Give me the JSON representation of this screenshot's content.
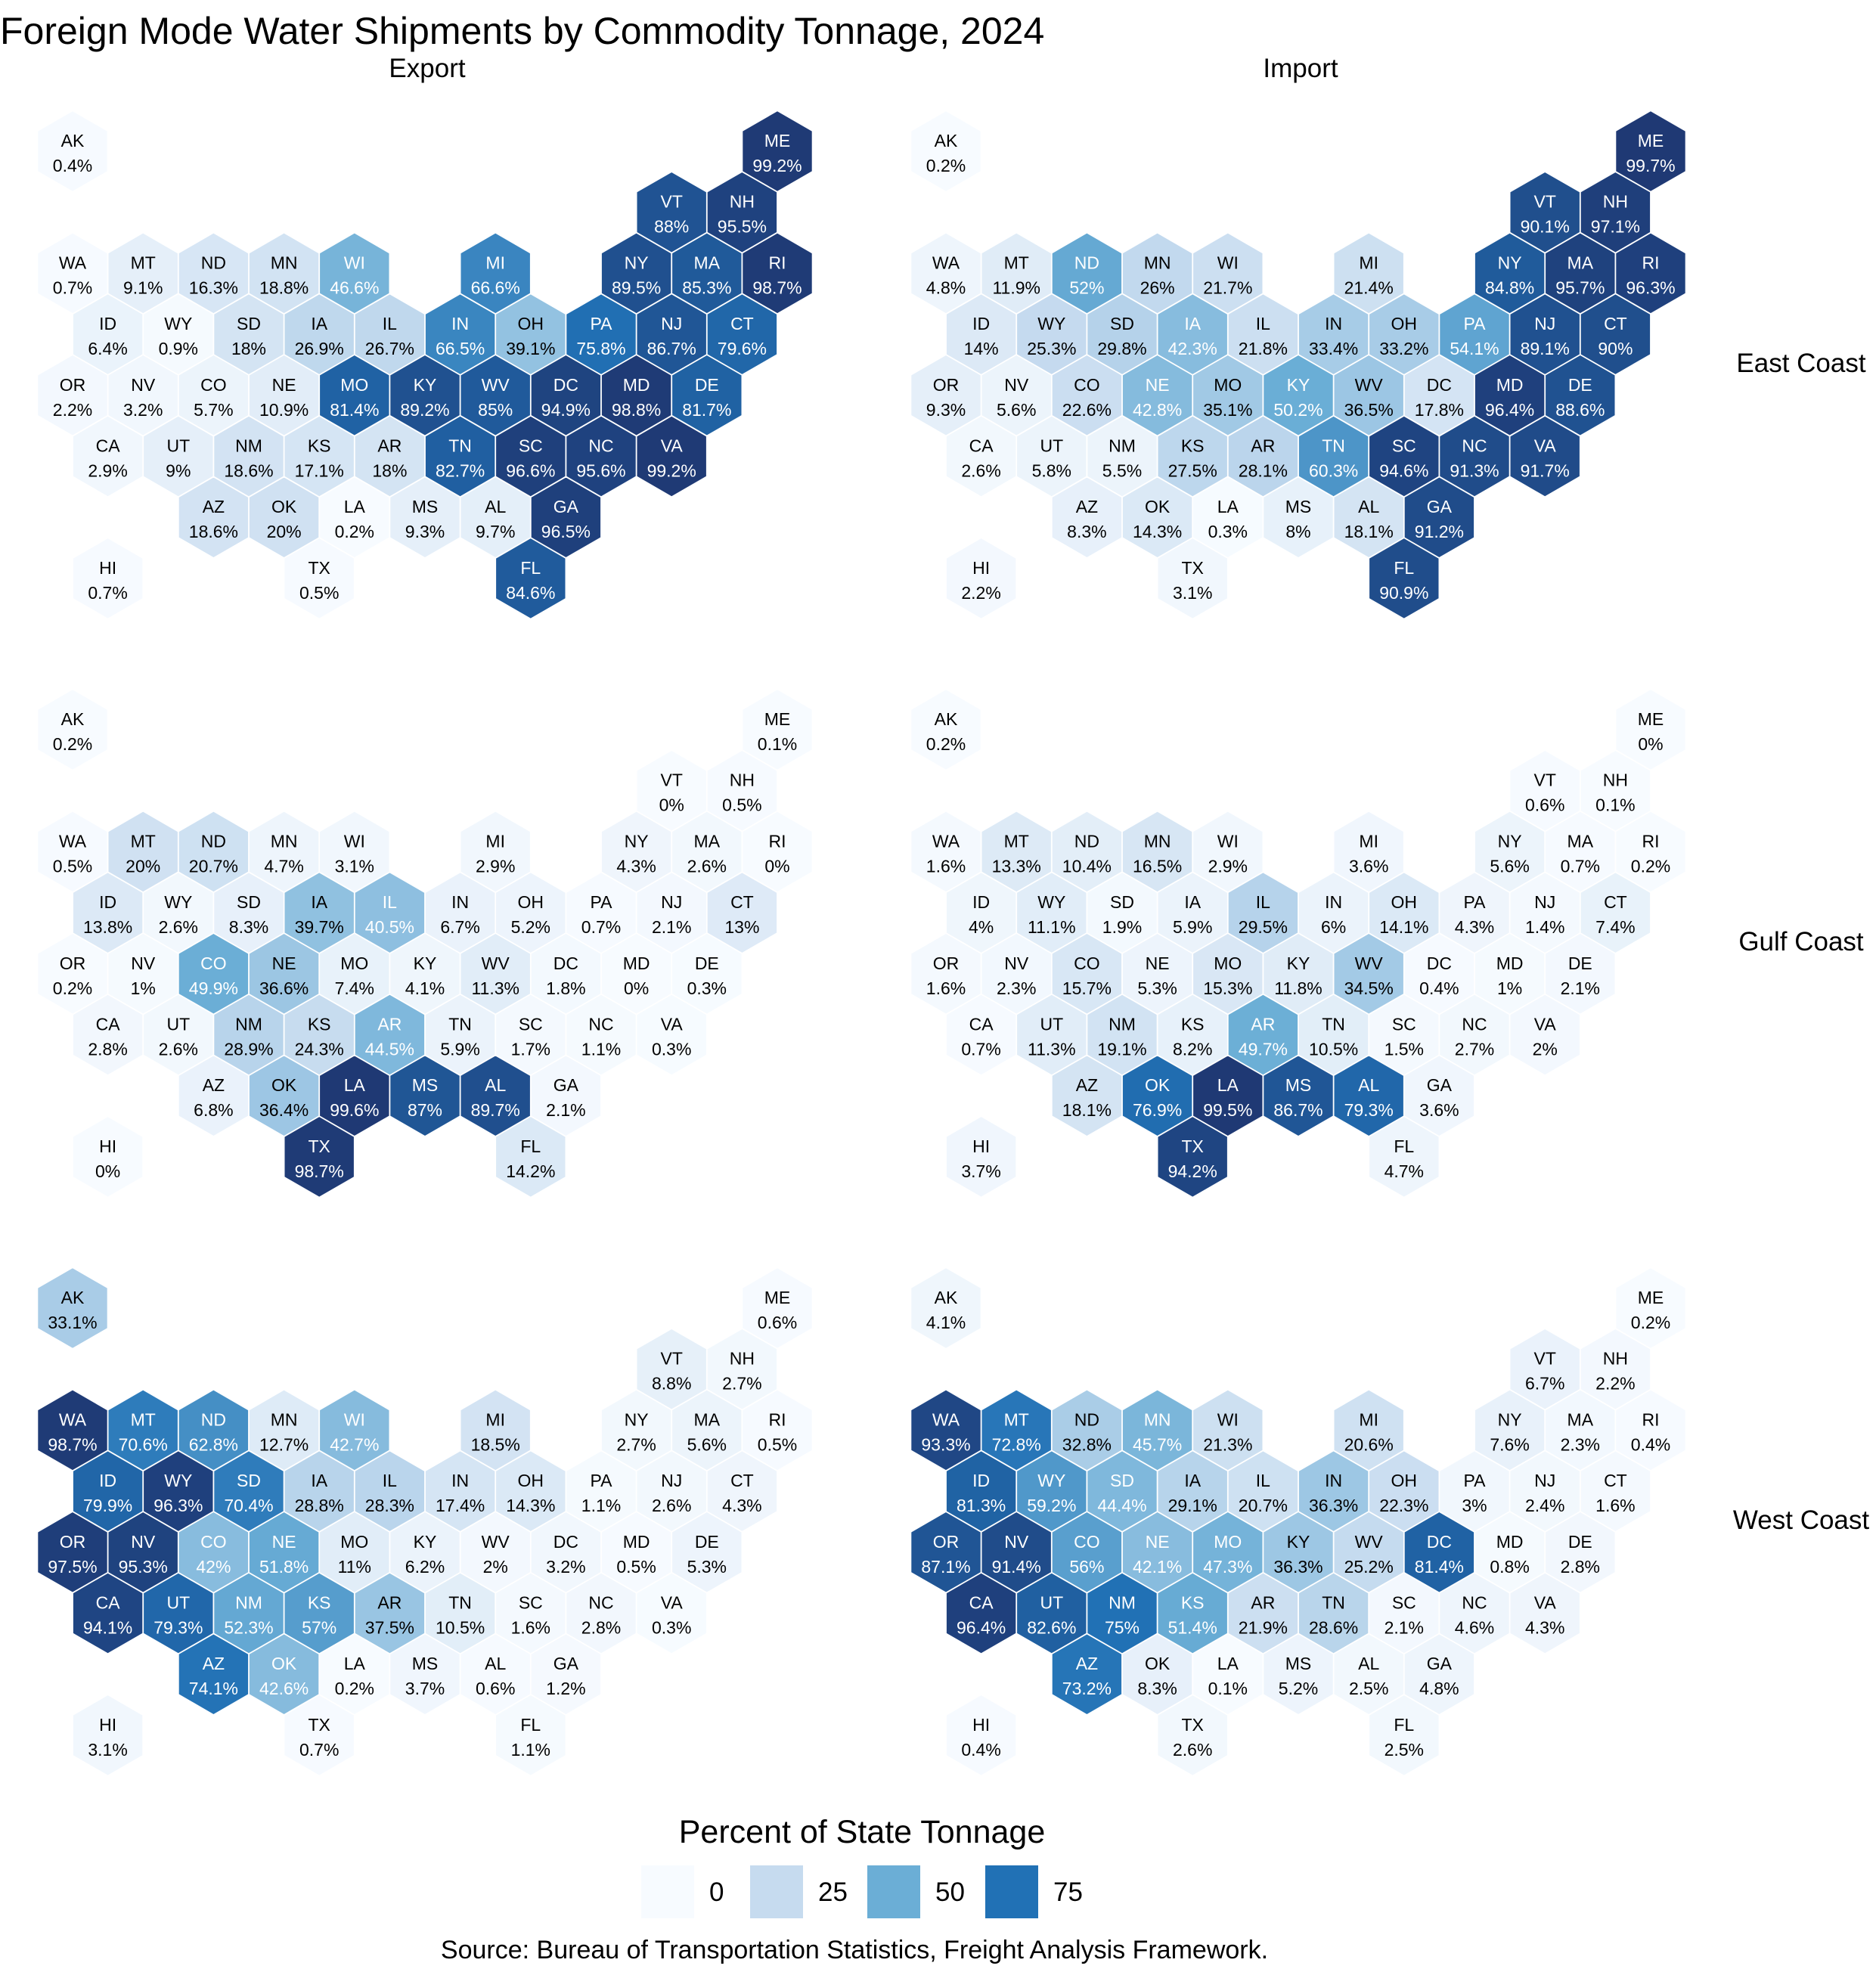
{
  "chart_data": {
    "type": "hex-tile-map",
    "title": "Foreign Mode Water Shipments by Commodity Tonnage, 2024",
    "columns": [
      "Export",
      "Import"
    ],
    "rows": [
      "East Coast",
      "Gulf Coast",
      "West Coast"
    ],
    "value_unit": "%",
    "states": [
      "AK",
      "ME",
      "VT",
      "NH",
      "WA",
      "MT",
      "ND",
      "MN",
      "WI",
      "MI",
      "NY",
      "MA",
      "RI",
      "ID",
      "WY",
      "SD",
      "IA",
      "IL",
      "IN",
      "OH",
      "PA",
      "NJ",
      "CT",
      "OR",
      "NV",
      "CO",
      "NE",
      "MO",
      "KY",
      "WV",
      "DC",
      "MD",
      "DE",
      "CA",
      "UT",
      "NM",
      "KS",
      "AR",
      "TN",
      "SC",
      "NC",
      "VA",
      "AZ",
      "OK",
      "LA",
      "MS",
      "AL",
      "GA",
      "HI",
      "TX",
      "FL"
    ],
    "panels": [
      {
        "row": "East Coast",
        "column": "Export",
        "values": {
          "AK": 0.4,
          "ME": 99.2,
          "VT": 88,
          "NH": 95.5,
          "WA": 0.7,
          "MT": 9.1,
          "ND": 16.3,
          "MN": 18.8,
          "WI": 46.6,
          "MI": 66.6,
          "NY": 89.5,
          "MA": 85.3,
          "RI": 98.7,
          "ID": 6.4,
          "WY": 0.9,
          "SD": 18,
          "IA": 26.9,
          "IL": 26.7,
          "IN": 66.5,
          "OH": 39.1,
          "PA": 75.8,
          "NJ": 86.7,
          "CT": 79.6,
          "OR": 2.2,
          "NV": 3.2,
          "CO": 5.7,
          "NE": 10.9,
          "MO": 81.4,
          "KY": 89.2,
          "WV": 85,
          "DC": 94.9,
          "MD": 98.8,
          "DE": 81.7,
          "CA": 2.9,
          "UT": 9,
          "NM": 18.6,
          "KS": 17.1,
          "AR": 18,
          "TN": 82.7,
          "SC": 96.6,
          "NC": 95.6,
          "VA": 99.2,
          "AZ": 18.6,
          "OK": 20,
          "LA": 0.2,
          "MS": 9.3,
          "AL": 9.7,
          "GA": 96.5,
          "HI": 0.7,
          "TX": 0.5,
          "FL": 84.6
        }
      },
      {
        "row": "East Coast",
        "column": "Import",
        "values": {
          "AK": 0.2,
          "ME": 99.7,
          "VT": 90.1,
          "NH": 97.1,
          "WA": 4.8,
          "MT": 11.9,
          "ND": 52,
          "MN": 26,
          "WI": 21.7,
          "MI": 21.4,
          "NY": 84.8,
          "MA": 95.7,
          "RI": 96.3,
          "ID": 14,
          "WY": 25.3,
          "SD": 29.8,
          "IA": 42.3,
          "IL": 21.8,
          "IN": 33.4,
          "OH": 33.2,
          "PA": 54.1,
          "NJ": 89.1,
          "CT": 90,
          "OR": 9.3,
          "NV": 5.6,
          "CO": 22.6,
          "NE": 42.8,
          "MO": 35.1,
          "KY": 50.2,
          "WV": 36.5,
          "DC": 17.8,
          "MD": 96.4,
          "DE": 88.6,
          "CA": 2.6,
          "UT": 5.8,
          "NM": 5.5,
          "KS": 27.5,
          "AR": 28.1,
          "TN": 60.3,
          "SC": 94.6,
          "NC": 91.3,
          "VA": 91.7,
          "AZ": 8.3,
          "OK": 14.3,
          "LA": 0.3,
          "MS": 8,
          "AL": 18.1,
          "GA": 91.2,
          "HI": 2.2,
          "TX": 3.1,
          "FL": 90.9
        }
      },
      {
        "row": "Gulf Coast",
        "column": "Export",
        "values": {
          "AK": 0.2,
          "ME": 0.1,
          "VT": 0,
          "NH": 0.5,
          "WA": 0.5,
          "MT": 20,
          "ND": 20.7,
          "MN": 4.7,
          "WI": 3.1,
          "MI": 2.9,
          "NY": 4.3,
          "MA": 2.6,
          "RI": 0,
          "ID": 13.8,
          "WY": 2.6,
          "SD": 8.3,
          "IA": 39.7,
          "IL": 40.5,
          "IN": 6.7,
          "OH": 5.2,
          "PA": 0.7,
          "NJ": 2.1,
          "CT": 13,
          "OR": 0.2,
          "NV": 1,
          "CO": 49.9,
          "NE": 36.6,
          "MO": 7.4,
          "KY": 4.1,
          "WV": 11.3,
          "DC": 1.8,
          "MD": 0,
          "DE": 0.3,
          "CA": 2.8,
          "UT": 2.6,
          "NM": 28.9,
          "KS": 24.3,
          "AR": 44.5,
          "TN": 5.9,
          "SC": 1.7,
          "NC": 1.1,
          "VA": 0.3,
          "AZ": 6.8,
          "OK": 36.4,
          "LA": 99.6,
          "MS": 87,
          "AL": 89.7,
          "GA": 2.1,
          "HI": 0,
          "TX": 98.7,
          "FL": 14.2
        }
      },
      {
        "row": "Gulf Coast",
        "column": "Import",
        "values": {
          "AK": 0.2,
          "ME": 0,
          "VT": 0.6,
          "NH": 0.1,
          "WA": 1.6,
          "MT": 13.3,
          "ND": 10.4,
          "MN": 16.5,
          "WI": 2.9,
          "MI": 3.6,
          "NY": 5.6,
          "MA": 0.7,
          "RI": 0.2,
          "ID": 4,
          "WY": 11.1,
          "SD": 1.9,
          "IA": 5.9,
          "IL": 29.5,
          "IN": 6,
          "OH": 14.1,
          "PA": 4.3,
          "NJ": 1.4,
          "CT": 7.4,
          "OR": 1.6,
          "NV": 2.3,
          "CO": 15.7,
          "NE": 5.3,
          "MO": 15.3,
          "KY": 11.8,
          "WV": 34.5,
          "DC": 0.4,
          "MD": 1,
          "DE": 2.1,
          "CA": 0.7,
          "UT": 11.3,
          "NM": 19.1,
          "KS": 8.2,
          "AR": 49.7,
          "TN": 10.5,
          "SC": 1.5,
          "NC": 2.7,
          "VA": 2,
          "AZ": 18.1,
          "OK": 76.9,
          "LA": 99.5,
          "MS": 86.7,
          "AL": 79.3,
          "GA": 3.6,
          "HI": 3.7,
          "TX": 94.2,
          "FL": 4.7
        }
      },
      {
        "row": "West Coast",
        "column": "Export",
        "values": {
          "AK": 33.1,
          "ME": 0.6,
          "VT": 8.8,
          "NH": 2.7,
          "WA": 98.7,
          "MT": 70.6,
          "ND": 62.8,
          "MN": 12.7,
          "WI": 42.7,
          "MI": 18.5,
          "NY": 2.7,
          "MA": 5.6,
          "RI": 0.5,
          "ID": 79.9,
          "WY": 96.3,
          "SD": 70.4,
          "IA": 28.8,
          "IL": 28.3,
          "IN": 17.4,
          "OH": 14.3,
          "PA": 1.1,
          "NJ": 2.6,
          "CT": 4.3,
          "OR": 97.5,
          "NV": 95.3,
          "CO": 42,
          "NE": 51.8,
          "MO": 11,
          "KY": 6.2,
          "WV": 2,
          "DC": 3.2,
          "MD": 0.5,
          "DE": 5.3,
          "CA": 94.1,
          "UT": 79.3,
          "NM": 52.3,
          "KS": 57,
          "AR": 37.5,
          "TN": 10.5,
          "SC": 1.6,
          "NC": 2.8,
          "VA": 0.3,
          "AZ": 74.1,
          "OK": 42.6,
          "LA": 0.2,
          "MS": 3.7,
          "AL": 0.6,
          "GA": 1.2,
          "HI": 3.1,
          "TX": 0.7,
          "FL": 1.1
        }
      },
      {
        "row": "West Coast",
        "column": "Import",
        "values": {
          "AK": 4.1,
          "ME": 0.2,
          "VT": 6.7,
          "NH": 2.2,
          "WA": 93.3,
          "MT": 72.8,
          "ND": 32.8,
          "MN": 45.7,
          "WI": 21.3,
          "MI": 20.6,
          "NY": 7.6,
          "MA": 2.3,
          "RI": 0.4,
          "ID": 81.3,
          "WY": 59.2,
          "SD": 44.4,
          "IA": 29.1,
          "IL": 20.7,
          "IN": 36.3,
          "OH": 22.3,
          "PA": 3,
          "NJ": 2.4,
          "CT": 1.6,
          "OR": 87.1,
          "NV": 91.4,
          "CO": 56,
          "NE": 42.1,
          "MO": 47.3,
          "KY": 36.3,
          "WV": 25.2,
          "DC": 81.4,
          "MD": 0.8,
          "DE": 2.8,
          "CA": 96.4,
          "UT": 82.6,
          "NM": 75,
          "KS": 51.4,
          "AR": 21.9,
          "TN": 28.6,
          "SC": 2.1,
          "NC": 4.6,
          "VA": 4.3,
          "AZ": 73.2,
          "OK": 8.3,
          "LA": 0.1,
          "MS": 5.2,
          "AL": 2.5,
          "GA": 4.8,
          "HI": 0.4,
          "TX": 2.6,
          "FL": 2.5
        }
      }
    ],
    "legend": {
      "title": "Percent of State Tonnage",
      "breaks": [
        "0",
        "25",
        "50",
        "75"
      ],
      "placement": "bottom"
    },
    "color_scale": [
      "#f7fbff",
      "#c6dbef",
      "#6baed6",
      "#2171b5",
      "#1f3873"
    ],
    "caption": "Source: Bureau of Transportation Statistics, Freight Analysis Framework."
  }
}
